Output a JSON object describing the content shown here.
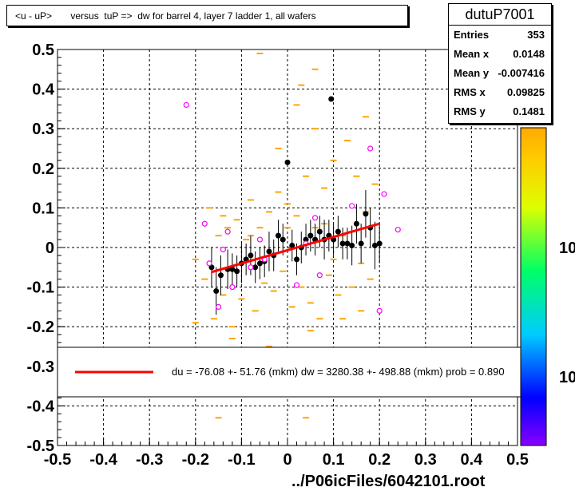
{
  "title": "<u - uP>       versus  tuP =>  dw for barrel 4, layer 7 ladder 1, all wafers",
  "stats": {
    "name": "dutuP7001",
    "rows": [
      {
        "label": "Entries",
        "value": "353"
      },
      {
        "label": "Mean x",
        "value": "0.0148"
      },
      {
        "label": "Mean y",
        "value": "-0.007416"
      },
      {
        "label": "RMS x",
        "value": "0.09825"
      },
      {
        "label": "RMS y",
        "value": "0.1481"
      }
    ]
  },
  "legend_text": "du =  -76.08 +- 51.76 (mkm) dw = 3280.38 +- 498.88 (mkm) prob = 0.890",
  "footer": "../P06icFiles/6042101.root",
  "palette_labels": [
    "10",
    "10"
  ],
  "colors": {
    "hist": "#ffa500",
    "points": "#000000",
    "open": "#ff00ff",
    "fit": "#ff0000"
  },
  "chart_data": {
    "type": "scatter",
    "xlim": [
      -0.5,
      0.5
    ],
    "ylim": [
      -0.5,
      0.5
    ],
    "xticks": [
      -0.5,
      -0.4,
      -0.3,
      -0.2,
      -0.1,
      0,
      0.1,
      0.2,
      0.3,
      0.4,
      0.5
    ],
    "yticks": [
      -0.5,
      -0.4,
      -0.3,
      -0.2,
      -0.1,
      0,
      0.1,
      0.2,
      0.3,
      0.4,
      0.5
    ],
    "xtick_labels": [
      "-0.5",
      "-0.4",
      "-0.3",
      "-0.2",
      "-0.1",
      "0",
      "0.1",
      "0.2",
      "0.3",
      "0.4",
      "0.5"
    ],
    "ytick_labels": [
      "-0.5",
      "-0.4",
      "-0.3",
      "-0.2",
      "-0.1",
      "0",
      "0.1",
      "0.2",
      "0.3",
      "0.4",
      "0.5"
    ],
    "grid": true,
    "fit_line": {
      "x": [
        -0.165,
        0.2
      ],
      "y": [
        -0.062,
        0.06
      ]
    },
    "filled_points": [
      {
        "x": -0.165,
        "y": -0.05,
        "e": 0.05
      },
      {
        "x": -0.155,
        "y": -0.11,
        "e": 0.06
      },
      {
        "x": -0.145,
        "y": -0.07,
        "e": 0.05
      },
      {
        "x": -0.13,
        "y": -0.055,
        "e": 0.05
      },
      {
        "x": -0.12,
        "y": -0.055,
        "e": 0.04
      },
      {
        "x": -0.11,
        "y": -0.06,
        "e": 0.04
      },
      {
        "x": -0.1,
        "y": -0.04,
        "e": 0.05
      },
      {
        "x": -0.09,
        "y": -0.03,
        "e": 0.04
      },
      {
        "x": -0.08,
        "y": -0.02,
        "e": 0.05
      },
      {
        "x": -0.07,
        "y": -0.05,
        "e": 0.04
      },
      {
        "x": -0.06,
        "y": -0.04,
        "e": 0.04
      },
      {
        "x": -0.05,
        "y": -0.035,
        "e": 0.04
      },
      {
        "x": -0.04,
        "y": -0.01,
        "e": 0.05
      },
      {
        "x": -0.03,
        "y": -0.02,
        "e": 0.04
      },
      {
        "x": -0.02,
        "y": 0.03,
        "e": 0.04
      },
      {
        "x": -0.01,
        "y": 0.02,
        "e": 0.04
      },
      {
        "x": 0.0,
        "y": 0.215,
        "e": 0.0
      },
      {
        "x": 0.01,
        "y": 0.005,
        "e": 0.04
      },
      {
        "x": 0.02,
        "y": -0.03,
        "e": 0.04
      },
      {
        "x": 0.03,
        "y": 0.0,
        "e": 0.04
      },
      {
        "x": 0.04,
        "y": 0.02,
        "e": 0.04
      },
      {
        "x": 0.05,
        "y": 0.03,
        "e": 0.04
      },
      {
        "x": 0.06,
        "y": 0.02,
        "e": 0.04
      },
      {
        "x": 0.07,
        "y": 0.04,
        "e": 0.04
      },
      {
        "x": 0.08,
        "y": 0.02,
        "e": 0.05
      },
      {
        "x": 0.09,
        "y": 0.03,
        "e": 0.04
      },
      {
        "x": 0.095,
        "y": 0.375,
        "e": 0.0
      },
      {
        "x": 0.1,
        "y": 0.02,
        "e": 0.04
      },
      {
        "x": 0.11,
        "y": 0.04,
        "e": 0.04
      },
      {
        "x": 0.12,
        "y": 0.01,
        "e": 0.04
      },
      {
        "x": 0.13,
        "y": 0.01,
        "e": 0.04
      },
      {
        "x": 0.14,
        "y": 0.005,
        "e": 0.05
      },
      {
        "x": 0.15,
        "y": 0.06,
        "e": 0.05
      },
      {
        "x": 0.16,
        "y": 0.01,
        "e": 0.05
      },
      {
        "x": 0.17,
        "y": 0.085,
        "e": 0.06
      },
      {
        "x": 0.18,
        "y": 0.05,
        "e": 0.05
      },
      {
        "x": 0.19,
        "y": 0.005,
        "e": 0.06
      },
      {
        "x": 0.2,
        "y": 0.01,
        "e": 0.05
      }
    ],
    "open_points": [
      {
        "x": -0.22,
        "y": 0.36
      },
      {
        "x": -0.18,
        "y": 0.06
      },
      {
        "x": -0.17,
        "y": -0.04
      },
      {
        "x": -0.15,
        "y": -0.15
      },
      {
        "x": -0.14,
        "y": -0.005
      },
      {
        "x": -0.13,
        "y": 0.04
      },
      {
        "x": -0.12,
        "y": -0.1
      },
      {
        "x": -0.08,
        "y": -0.05
      },
      {
        "x": -0.06,
        "y": 0.02
      },
      {
        "x": -0.05,
        "y": -0.03
      },
      {
        "x": 0.02,
        "y": -0.095
      },
      {
        "x": 0.04,
        "y": 0.01
      },
      {
        "x": 0.06,
        "y": 0.075
      },
      {
        "x": 0.07,
        "y": -0.07
      },
      {
        "x": 0.14,
        "y": 0.105
      },
      {
        "x": 0.18,
        "y": 0.25
      },
      {
        "x": 0.2,
        "y": -0.16
      },
      {
        "x": 0.21,
        "y": 0.135
      },
      {
        "x": 0.24,
        "y": 0.045
      }
    ],
    "hist_bins": [
      {
        "x": -0.2,
        "y": -0.03
      },
      {
        "x": -0.18,
        "y": -0.08
      },
      {
        "x": -0.17,
        "y": 0.1
      },
      {
        "x": -0.16,
        "y": -0.18
      },
      {
        "x": -0.15,
        "y": 0.03
      },
      {
        "x": -0.14,
        "y": -0.12
      },
      {
        "x": -0.13,
        "y": 0.05
      },
      {
        "x": -0.12,
        "y": -0.2
      },
      {
        "x": -0.11,
        "y": 0.07
      },
      {
        "x": -0.1,
        "y": -0.13
      },
      {
        "x": -0.09,
        "y": 0.02
      },
      {
        "x": -0.08,
        "y": 0.12
      },
      {
        "x": -0.07,
        "y": -0.16
      },
      {
        "x": -0.06,
        "y": 0.05
      },
      {
        "x": -0.05,
        "y": -0.09
      },
      {
        "x": -0.04,
        "y": 0.09
      },
      {
        "x": -0.03,
        "y": -0.11
      },
      {
        "x": -0.02,
        "y": 0.14
      },
      {
        "x": -0.01,
        "y": -0.06
      },
      {
        "x": 0.0,
        "y": 0.11
      },
      {
        "x": 0.01,
        "y": -0.15
      },
      {
        "x": 0.02,
        "y": 0.08
      },
      {
        "x": 0.03,
        "y": -0.1
      },
      {
        "x": 0.04,
        "y": 0.18
      },
      {
        "x": 0.05,
        "y": -0.14
      },
      {
        "x": 0.06,
        "y": 0.05
      },
      {
        "x": 0.07,
        "y": -0.18
      },
      {
        "x": 0.08,
        "y": 0.15
      },
      {
        "x": 0.09,
        "y": -0.07
      },
      {
        "x": 0.1,
        "y": 0.22
      },
      {
        "x": 0.11,
        "y": -0.12
      },
      {
        "x": 0.12,
        "y": 0.03
      },
      {
        "x": 0.13,
        "y": 0.27
      },
      {
        "x": 0.14,
        "y": -0.1
      },
      {
        "x": 0.15,
        "y": 0.18
      },
      {
        "x": 0.16,
        "y": -0.04
      },
      {
        "x": 0.17,
        "y": 0.09
      },
      {
        "x": 0.18,
        "y": -0.08
      },
      {
        "x": 0.19,
        "y": 0.16
      },
      {
        "x": 0.02,
        "y": 0.36
      },
      {
        "x": 0.03,
        "y": 0.41
      },
      {
        "x": 0.06,
        "y": 0.3
      },
      {
        "x": -0.06,
        "y": 0.49
      },
      {
        "x": 0.06,
        "y": 0.45
      },
      {
        "x": 0.17,
        "y": 0.33
      },
      {
        "x": -0.2,
        "y": -0.19
      },
      {
        "x": -0.15,
        "y": -0.43
      },
      {
        "x": 0.05,
        "y": -0.21
      },
      {
        "x": -0.04,
        "y": -0.25
      },
      {
        "x": 0.12,
        "y": -0.18
      },
      {
        "x": 0.16,
        "y": -0.16
      },
      {
        "x": -0.12,
        "y": -0.23
      },
      {
        "x": 0.04,
        "y": -0.43
      },
      {
        "x": -0.02,
        "y": 0.25
      },
      {
        "x": 0.0,
        "y": 0.05
      },
      {
        "x": 0.08,
        "y": 0.06
      },
      {
        "x": -0.08,
        "y": 0.03
      },
      {
        "x": 0.1,
        "y": -0.03
      },
      {
        "x": -0.14,
        "y": 0.08
      },
      {
        "x": 0.14,
        "y": 0.04
      }
    ]
  }
}
